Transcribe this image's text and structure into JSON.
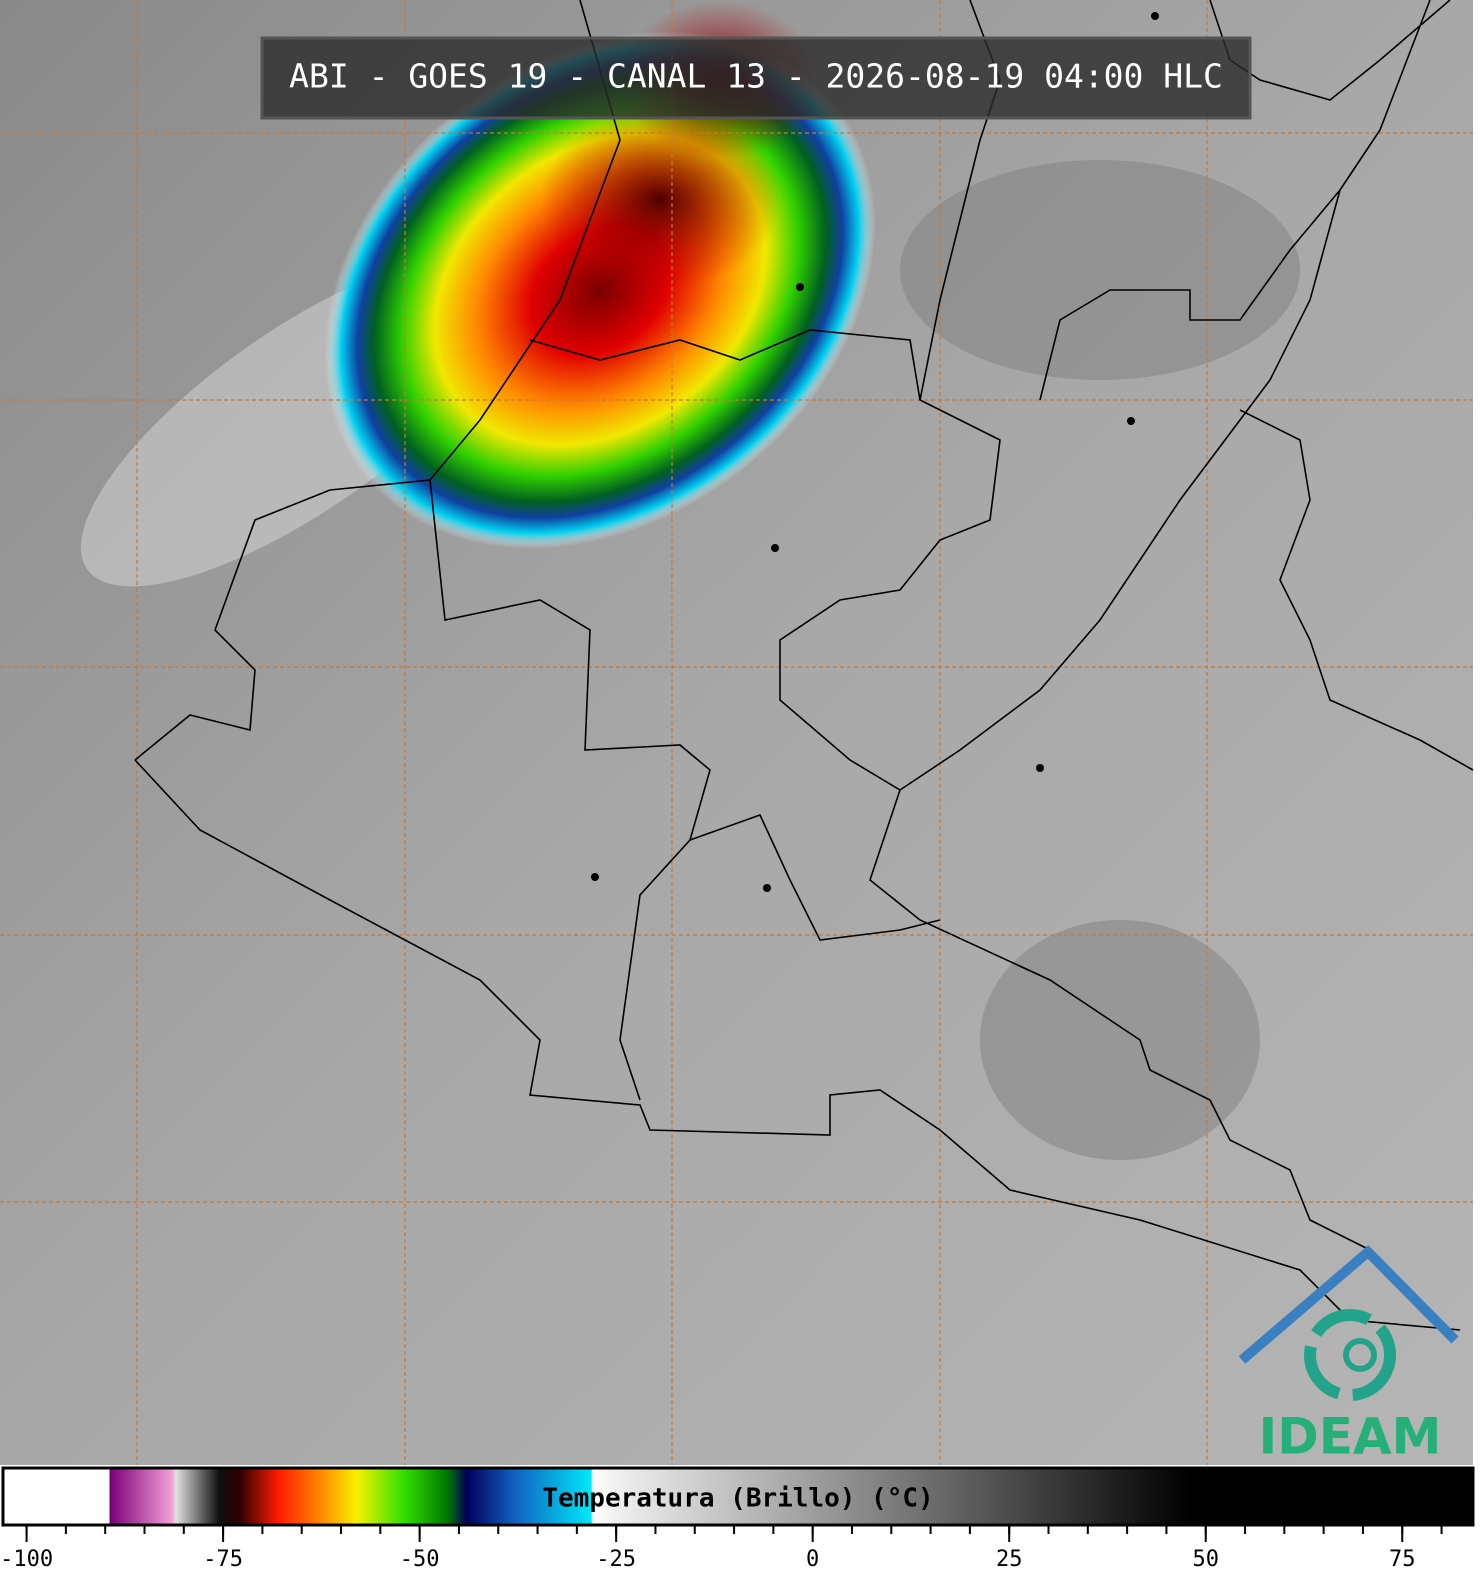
{
  "title": "ABI - GOES 19 - CANAL 13 - 2026-08-19 04:00 HLC",
  "colorbar": {
    "label": "Temperatura (Brillo) (°C)",
    "lim": [
      -103,
      84
    ],
    "ticks": [
      -100,
      -75,
      -50,
      -25,
      0,
      25,
      50,
      75
    ],
    "minor_step": 5,
    "stops": [
      {
        "value": -103,
        "color": "#ffffff"
      },
      {
        "value": -89.5,
        "color": "#ffffff"
      },
      {
        "value": -89.4,
        "color": "#7a0078"
      },
      {
        "value": -81.5,
        "color": "#f4a0d8"
      },
      {
        "value": -81,
        "color": "#e0e0e0"
      },
      {
        "value": -75.5,
        "color": "#101010"
      },
      {
        "value": -73,
        "color": "#2a0000"
      },
      {
        "value": -68,
        "color": "#ff1a00"
      },
      {
        "value": -63,
        "color": "#ff8000"
      },
      {
        "value": -58,
        "color": "#f8f000"
      },
      {
        "value": -52,
        "color": "#30e000"
      },
      {
        "value": -46.5,
        "color": "#007800"
      },
      {
        "value": -44,
        "color": "#00005a"
      },
      {
        "value": -38,
        "color": "#1060c0"
      },
      {
        "value": -28.2,
        "color": "#00e8f8"
      },
      {
        "value": -28,
        "color": "#ffffff"
      },
      {
        "value": -25,
        "color": "#f0f0f0"
      },
      {
        "value": 48,
        "color": "#000000"
      },
      {
        "value": 84,
        "color": "#000000"
      }
    ]
  },
  "logo": "IDEAM"
}
